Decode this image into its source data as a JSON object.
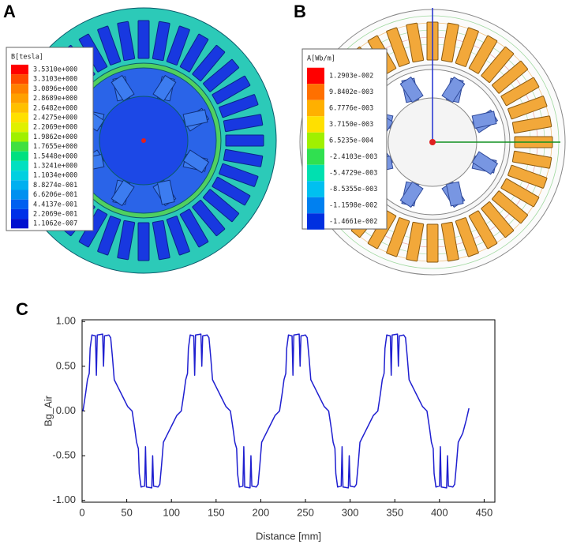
{
  "panel_a": {
    "label": "A",
    "legend": {
      "title": "B[tesla]",
      "labels": [
        "3.5310e+000",
        "3.3103e+000",
        "3.0896e+000",
        "2.8689e+000",
        "2.6482e+000",
        "2.4275e+000",
        "2.2069e+000",
        "1.9862e+000",
        "1.7655e+000",
        "1.5448e+000",
        "1.3241e+000",
        "1.1034e+000",
        "8.8274e-001",
        "6.6206e-001",
        "4.4137e-001",
        "2.2069e-001",
        "1.1062e-007"
      ],
      "colors": [
        "#ff0000",
        "#ff4a00",
        "#ff8000",
        "#ffa000",
        "#ffc000",
        "#ffe000",
        "#e0f000",
        "#a0f000",
        "#40e040",
        "#00e080",
        "#00e0c0",
        "#00d0e0",
        "#00b0f0",
        "#0090f0",
        "#0060f0",
        "#0030e8",
        "#0010d0"
      ]
    }
  },
  "panel_b": {
    "label": "B",
    "legend": {
      "title": "A[Wb/m]",
      "labels": [
        "1.2903e-002",
        "9.8402e-003",
        "6.7776e-003",
        "3.7150e-003",
        "6.5235e-004",
        "-2.4103e-003",
        "-5.4729e-003",
        "-8.5355e-003",
        "-1.1598e-002",
        "-1.4661e-002"
      ],
      "colors": [
        "#ff0000",
        "#ff7000",
        "#ffb000",
        "#ffe000",
        "#a0f000",
        "#30e050",
        "#00e0b0",
        "#00c0f0",
        "#0080f0",
        "#0030e0"
      ]
    }
  },
  "chart_data": {
    "type": "line",
    "label": "C",
    "xlabel": "Distance [mm]",
    "ylabel": "Bg_Air",
    "xlim": [
      0,
      462
    ],
    "ylim": [
      -1.02,
      1.02
    ],
    "xticks": [
      0,
      50,
      100,
      150,
      200,
      250,
      300,
      350,
      400,
      450
    ],
    "yticks": [
      {
        "value": -1,
        "label": "-1.00"
      },
      {
        "value": -0.5,
        "label": "-0.50"
      },
      {
        "value": 0,
        "label": "0.00"
      },
      {
        "value": 0.5,
        "label": "0.50"
      },
      {
        "value": 1,
        "label": "1.00"
      }
    ],
    "x": [
      1,
      4,
      6,
      8,
      9,
      11,
      15,
      16,
      17,
      23,
      24,
      25,
      30,
      32,
      34,
      36,
      41,
      46,
      51,
      56,
      59,
      61,
      63,
      64,
      66,
      70,
      71,
      72,
      78,
      79,
      80,
      85,
      87,
      89,
      91,
      96,
      101,
      106,
      111,
      114,
      116,
      118,
      119,
      121,
      125,
      126,
      127,
      133,
      134,
      135,
      140,
      142,
      144,
      146,
      151,
      156,
      161,
      166,
      169,
      171,
      173,
      174,
      176,
      180,
      181,
      182,
      188,
      189,
      190,
      195,
      197,
      199,
      201,
      206,
      211,
      216,
      221,
      224,
      226,
      228,
      229,
      231,
      235,
      236,
      237,
      243,
      244,
      245,
      250,
      252,
      254,
      256,
      261,
      266,
      271,
      276,
      279,
      281,
      283,
      284,
      286,
      290,
      291,
      292,
      298,
      299,
      300,
      305,
      307,
      309,
      311,
      316,
      321,
      326,
      331,
      334,
      336,
      338,
      339,
      341,
      345,
      346,
      347,
      353,
      354,
      355,
      360,
      362,
      364,
      366,
      371,
      376,
      381,
      386,
      389,
      391,
      393,
      394,
      396,
      400,
      401,
      402,
      408,
      409,
      410,
      415,
      417,
      419,
      421,
      426,
      430,
      433
    ],
    "series": [
      {
        "color": "#1f1fd0",
        "values": [
          0,
          0.2,
          0.35,
          0.42,
          0.7,
          0.85,
          0.84,
          0.4,
          0.85,
          0.86,
          0.5,
          0.84,
          0.85,
          0.82,
          0.6,
          0.35,
          0.25,
          0.15,
          0.05,
          0,
          -0.2,
          -0.35,
          -0.42,
          -0.7,
          -0.85,
          -0.84,
          -0.4,
          -0.85,
          -0.86,
          -0.5,
          -0.84,
          -0.85,
          -0.82,
          -0.6,
          -0.35,
          -0.25,
          -0.15,
          -0.05,
          0,
          0.2,
          0.35,
          0.42,
          0.7,
          0.85,
          0.84,
          0.4,
          0.85,
          0.86,
          0.5,
          0.84,
          0.85,
          0.82,
          0.6,
          0.35,
          0.25,
          0.15,
          0.05,
          0,
          -0.2,
          -0.35,
          -0.42,
          -0.7,
          -0.85,
          -0.84,
          -0.4,
          -0.85,
          -0.86,
          -0.5,
          -0.84,
          -0.85,
          -0.82,
          -0.6,
          -0.35,
          -0.25,
          -0.15,
          -0.05,
          0,
          0.2,
          0.35,
          0.42,
          0.7,
          0.85,
          0.84,
          0.4,
          0.85,
          0.86,
          0.5,
          0.84,
          0.85,
          0.82,
          0.6,
          0.35,
          0.25,
          0.15,
          0.05,
          0,
          -0.2,
          -0.35,
          -0.42,
          -0.7,
          -0.85,
          -0.84,
          -0.4,
          -0.85,
          -0.86,
          -0.5,
          -0.84,
          -0.85,
          -0.82,
          -0.6,
          -0.35,
          -0.25,
          -0.15,
          -0.05,
          0,
          0.2,
          0.35,
          0.42,
          0.7,
          0.85,
          0.84,
          0.4,
          0.85,
          0.86,
          0.5,
          0.84,
          0.85,
          0.82,
          0.6,
          0.35,
          0.25,
          0.15,
          0.05,
          0,
          -0.2,
          -0.35,
          -0.42,
          -0.7,
          -0.85,
          -0.84,
          -0.4,
          -0.85,
          -0.86,
          -0.5,
          -0.84,
          -0.85,
          -0.82,
          -0.6,
          -0.35,
          -0.25,
          -0.1,
          0.03
        ]
      }
    ]
  }
}
